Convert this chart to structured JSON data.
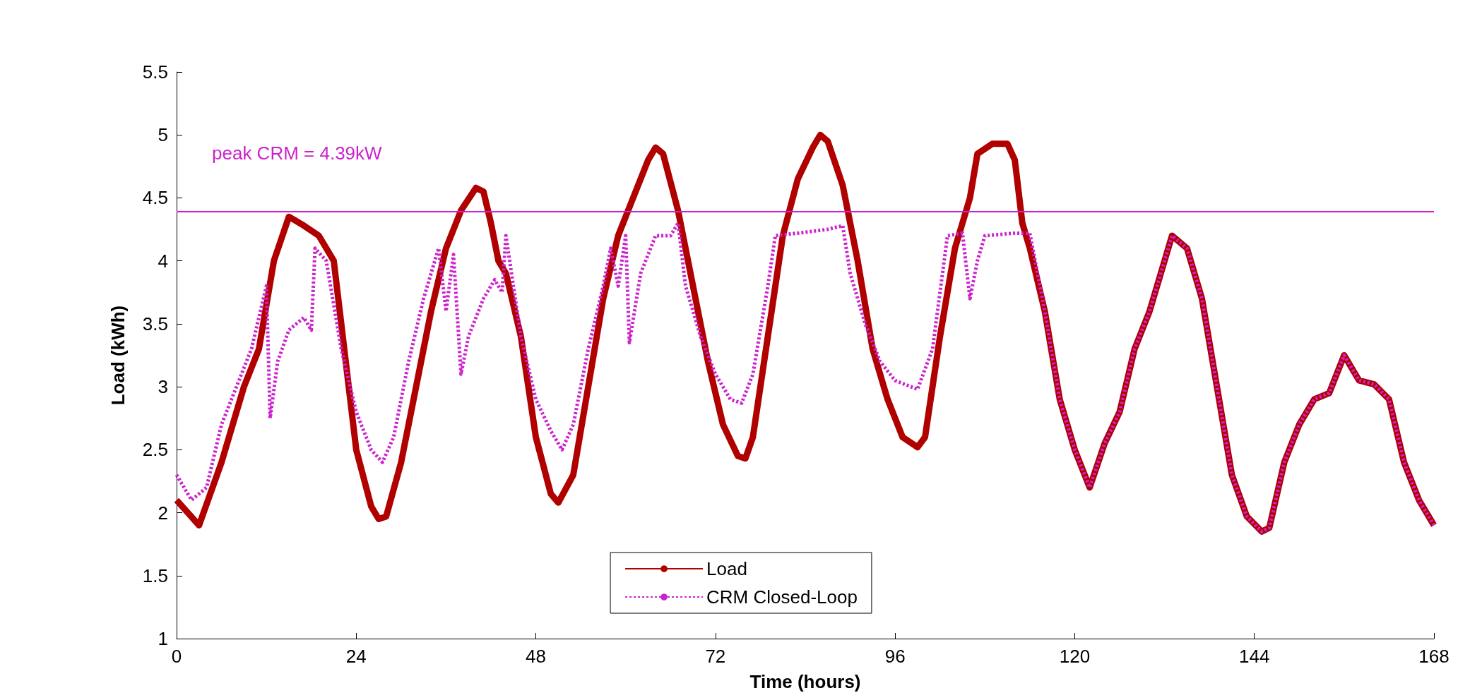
{
  "chart_data": {
    "type": "line",
    "xlabel": "Time (hours)",
    "ylabel": "Load (kWh)",
    "xlim": [
      0,
      168
    ],
    "xticks": [
      0,
      24,
      48,
      72,
      96,
      120,
      144,
      168
    ],
    "ylim": [
      1,
      5.5
    ],
    "yticks": [
      1,
      1.5,
      2,
      2.5,
      3,
      3.5,
      4,
      4.5,
      5,
      5.5
    ],
    "grid": false,
    "legend": "bottom",
    "marker": "none",
    "ref_lines": [
      {
        "axis": "y",
        "value": 4.39,
        "label": "peak CRM = 4.39kW",
        "color": "#cc22cc"
      }
    ],
    "series": [
      {
        "name": "Load",
        "color": "#b00000",
        "line_style": "solid",
        "x": [
          0,
          3,
          6,
          9,
          11,
          13,
          15,
          17,
          19,
          20,
          21,
          22,
          23,
          24,
          26,
          27,
          28,
          30,
          32,
          34,
          36,
          38,
          40,
          41,
          42,
          43,
          44,
          46,
          48,
          50,
          51,
          53,
          55,
          57,
          59,
          61,
          63,
          64,
          65,
          67,
          69,
          71,
          73,
          75,
          76,
          77,
          79,
          81,
          83,
          85,
          86,
          87,
          89,
          91,
          93,
          95,
          97,
          99,
          100,
          102,
          104,
          106,
          107,
          109,
          111,
          112,
          113,
          114,
          116,
          118,
          120,
          122,
          124,
          126,
          128,
          130,
          132,
          133,
          135,
          137,
          139,
          141,
          143,
          145,
          146,
          148,
          150,
          152,
          154,
          156,
          158,
          160,
          162,
          164,
          166,
          168
        ],
        "values": [
          2.1,
          1.9,
          2.4,
          3.0,
          3.3,
          4.0,
          4.35,
          4.28,
          4.2,
          4.1,
          4.0,
          3.5,
          3.0,
          2.5,
          2.05,
          1.95,
          1.97,
          2.4,
          3.0,
          3.6,
          4.1,
          4.4,
          4.58,
          4.55,
          4.3,
          4.0,
          3.9,
          3.4,
          2.6,
          2.15,
          2.08,
          2.3,
          3.0,
          3.7,
          4.2,
          4.5,
          4.8,
          4.9,
          4.85,
          4.4,
          3.8,
          3.2,
          2.7,
          2.45,
          2.43,
          2.6,
          3.4,
          4.2,
          4.65,
          4.9,
          5.0,
          4.95,
          4.6,
          4.0,
          3.3,
          2.9,
          2.6,
          2.52,
          2.6,
          3.4,
          4.1,
          4.5,
          4.85,
          4.93,
          4.93,
          4.8,
          4.3,
          4.1,
          3.6,
          2.9,
          2.5,
          2.2,
          2.55,
          2.8,
          3.3,
          3.6,
          4.0,
          4.2,
          4.1,
          3.7,
          3.0,
          2.3,
          1.97,
          1.85,
          1.88,
          2.4,
          2.7,
          2.9,
          2.95,
          3.25,
          3.05,
          3.02,
          2.9,
          2.4,
          2.1,
          1.9
        ]
      },
      {
        "name": "CRM Closed-Loop",
        "color": "#cc22cc",
        "line_style": "dotted",
        "x": [
          0,
          2,
          4,
          6,
          8,
          10,
          12,
          12.5,
          13.5,
          15,
          17,
          18,
          18.5,
          20,
          22,
          24,
          26,
          27.5,
          29,
          31,
          33,
          35,
          36,
          37,
          38,
          39,
          41,
          42.5,
          43.5,
          44,
          46,
          48,
          50,
          51.5,
          53,
          55,
          57,
          58,
          59,
          60,
          60.5,
          62,
          64,
          66,
          67,
          68,
          70,
          72,
          74,
          75.5,
          77,
          79,
          80,
          83,
          87,
          89,
          90,
          92,
          94,
          96,
          99,
          101,
          103,
          105,
          106,
          107,
          108,
          112,
          114,
          116,
          118,
          120,
          122,
          124,
          126,
          128,
          130,
          132,
          133,
          135,
          137,
          139,
          141,
          143,
          145,
          146,
          148,
          150,
          152,
          154,
          156,
          158,
          160,
          162,
          164,
          166,
          168
        ],
        "values": [
          2.3,
          2.1,
          2.2,
          2.7,
          3.0,
          3.3,
          3.8,
          2.75,
          3.2,
          3.45,
          3.55,
          3.45,
          4.1,
          4.0,
          3.3,
          2.8,
          2.5,
          2.4,
          2.6,
          3.2,
          3.7,
          4.1,
          3.6,
          4.05,
          3.1,
          3.4,
          3.7,
          3.85,
          3.75,
          4.2,
          3.4,
          2.9,
          2.65,
          2.5,
          2.7,
          3.3,
          3.8,
          4.1,
          3.8,
          4.2,
          3.35,
          3.9,
          4.2,
          4.2,
          4.3,
          3.8,
          3.4,
          3.1,
          2.9,
          2.87,
          3.1,
          3.8,
          4.2,
          4.22,
          4.25,
          4.28,
          3.9,
          3.5,
          3.2,
          3.05,
          2.98,
          3.3,
          4.2,
          4.22,
          3.7,
          4.0,
          4.2,
          4.22,
          4.22,
          3.6,
          2.9,
          2.5,
          2.2,
          2.55,
          2.8,
          3.3,
          3.6,
          4.0,
          4.2,
          4.1,
          3.7,
          3.0,
          2.3,
          1.97,
          1.85,
          1.88,
          2.4,
          2.7,
          2.9,
          2.95,
          3.25,
          3.05,
          3.02,
          2.9,
          2.4,
          2.1,
          1.9
        ]
      }
    ]
  }
}
